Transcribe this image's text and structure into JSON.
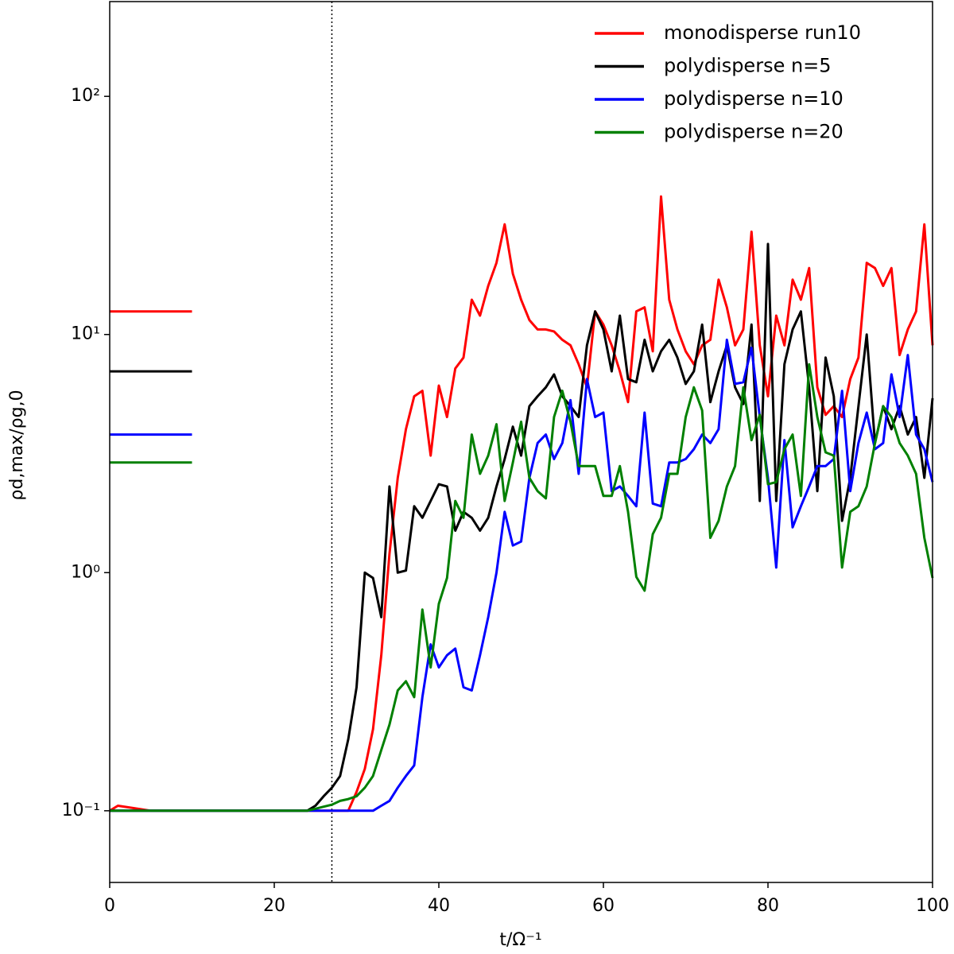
{
  "chart_data": {
    "type": "line",
    "xlabel": "t/Ω⁻¹",
    "ylabel": "ρd,max/ρg,0",
    "xlim": [
      0,
      100
    ],
    "xticks": [
      0,
      20,
      40,
      60,
      80,
      100
    ],
    "ylim": [
      0.05,
      250
    ],
    "yscale": "log",
    "yticks": [
      {
        "value": 0.1,
        "label": "10⁻¹"
      },
      {
        "value": 1,
        "label": "10⁰"
      },
      {
        "value": 10,
        "label": "10¹"
      },
      {
        "value": 100,
        "label": "10²"
      }
    ],
    "legend": "upper right",
    "vline": 27,
    "saturation_xlim": [
      0,
      10
    ],
    "x": [
      0,
      1,
      5,
      10,
      15,
      20,
      24,
      25,
      26,
      27,
      28,
      29,
      30,
      31,
      32,
      33,
      34,
      35,
      36,
      37,
      38,
      39,
      40,
      41,
      42,
      43,
      44,
      45,
      46,
      47,
      48,
      49,
      50,
      51,
      52,
      53,
      54,
      55,
      56,
      57,
      58,
      59,
      60,
      61,
      62,
      63,
      64,
      65,
      66,
      67,
      68,
      69,
      70,
      71,
      72,
      73,
      74,
      75,
      76,
      77,
      78,
      79,
      80,
      81,
      82,
      83,
      84,
      85,
      86,
      87,
      88,
      89,
      90,
      91,
      92,
      93,
      94,
      95,
      96,
      97,
      98,
      99,
      100
    ],
    "series": [
      {
        "name": "monodisperse run10",
        "color": "#ff0000",
        "saturation": 12.5,
        "values": [
          0.1,
          0.105,
          0.1,
          0.1,
          0.1,
          0.1,
          0.1,
          0.1,
          0.1,
          0.1,
          0.1,
          0.1,
          0.12,
          0.15,
          0.22,
          0.45,
          1.2,
          2.5,
          4,
          5.5,
          5.8,
          3.1,
          6.1,
          4.5,
          7.2,
          8,
          14,
          12,
          16,
          20,
          29,
          18,
          14,
          11.5,
          10.5,
          10.5,
          10.3,
          9.5,
          9,
          7.5,
          6,
          12.5,
          11,
          9,
          7,
          5.2,
          12.5,
          13,
          8.5,
          38,
          14,
          10.5,
          8.5,
          7.5,
          9,
          9.5,
          17,
          13,
          9,
          10.5,
          27,
          9,
          5.5,
          12,
          9,
          17,
          14,
          19,
          6,
          4.6,
          5,
          4.5,
          6.5,
          8,
          20,
          19,
          16,
          19,
          8.2,
          10.5,
          12.5,
          29,
          9
        ]
      },
      {
        "name": "polydisperse n=5",
        "color": "#000000",
        "saturation": 7,
        "values": [
          0.1,
          0.1,
          0.1,
          0.1,
          0.1,
          0.1,
          0.1,
          0.105,
          0.115,
          0.125,
          0.14,
          0.2,
          0.33,
          1,
          0.95,
          0.65,
          2.3,
          1,
          1.02,
          1.9,
          1.7,
          2,
          2.35,
          2.3,
          1.5,
          1.8,
          1.7,
          1.5,
          1.7,
          2.3,
          3,
          4.1,
          3.1,
          5,
          5.5,
          6,
          6.8,
          5.5,
          5,
          4.5,
          9,
          12.5,
          10.5,
          7,
          12,
          6.5,
          6.3,
          9.5,
          7,
          8.5,
          9.5,
          8,
          6.2,
          7,
          11,
          5.2,
          7,
          9,
          6,
          5.1,
          11,
          2,
          24,
          2,
          7.5,
          10.5,
          12.5,
          6,
          2.2,
          8,
          5.5,
          1.65,
          2.5,
          5,
          10,
          3.5,
          5,
          4,
          5,
          3.8,
          4.5,
          2.5,
          5.4
        ]
      },
      {
        "name": "polydisperse n=10",
        "color": "#0000ff",
        "saturation": 3.8,
        "values": [
          0.1,
          0.1,
          0.1,
          0.1,
          0.1,
          0.1,
          0.1,
          0.1,
          0.1,
          0.1,
          0.1,
          0.1,
          0.1,
          0.1,
          0.1,
          0.105,
          0.11,
          0.125,
          0.14,
          0.155,
          0.3,
          0.5,
          0.4,
          0.45,
          0.48,
          0.33,
          0.32,
          0.45,
          0.65,
          1,
          1.8,
          1.3,
          1.35,
          2.5,
          3.5,
          3.8,
          3,
          3.5,
          5.3,
          2.6,
          6.5,
          4.5,
          4.7,
          2.2,
          2.3,
          2.1,
          1.9,
          4.7,
          1.95,
          1.9,
          2.9,
          2.9,
          3,
          3.3,
          3.8,
          3.5,
          4,
          9.5,
          6.2,
          6.3,
          8.8,
          4.5,
          2.5,
          1.05,
          3.6,
          1.55,
          1.9,
          2.3,
          2.8,
          2.8,
          3,
          5.8,
          2.2,
          3.5,
          4.7,
          3.3,
          3.5,
          6.8,
          4.5,
          8.2,
          3.8,
          3.3,
          2.4
        ]
      },
      {
        "name": "polydisperse n=20",
        "color": "#008000",
        "saturation": 2.9,
        "values": [
          0.1,
          0.1,
          0.1,
          0.1,
          0.1,
          0.1,
          0.1,
          0.102,
          0.104,
          0.106,
          0.11,
          0.112,
          0.115,
          0.125,
          0.14,
          0.18,
          0.23,
          0.32,
          0.35,
          0.3,
          0.7,
          0.4,
          0.74,
          0.95,
          2,
          1.7,
          3.8,
          2.6,
          3.1,
          4.2,
          2,
          2.9,
          4.3,
          2.5,
          2.2,
          2.05,
          4.5,
          5.8,
          4.3,
          2.8,
          2.8,
          2.8,
          2.1,
          2.1,
          2.8,
          1.8,
          0.96,
          0.84,
          1.45,
          1.7,
          2.6,
          2.6,
          4.5,
          6,
          4.8,
          1.4,
          1.65,
          2.3,
          2.8,
          6,
          3.6,
          4.6,
          2.35,
          2.4,
          3.3,
          3.8,
          2.1,
          7.5,
          4.5,
          3.2,
          3.1,
          1.05,
          1.8,
          1.9,
          2.3,
          3.5,
          5,
          4.5,
          3.5,
          3.1,
          2.6,
          1.4,
          0.95
        ]
      }
    ]
  }
}
